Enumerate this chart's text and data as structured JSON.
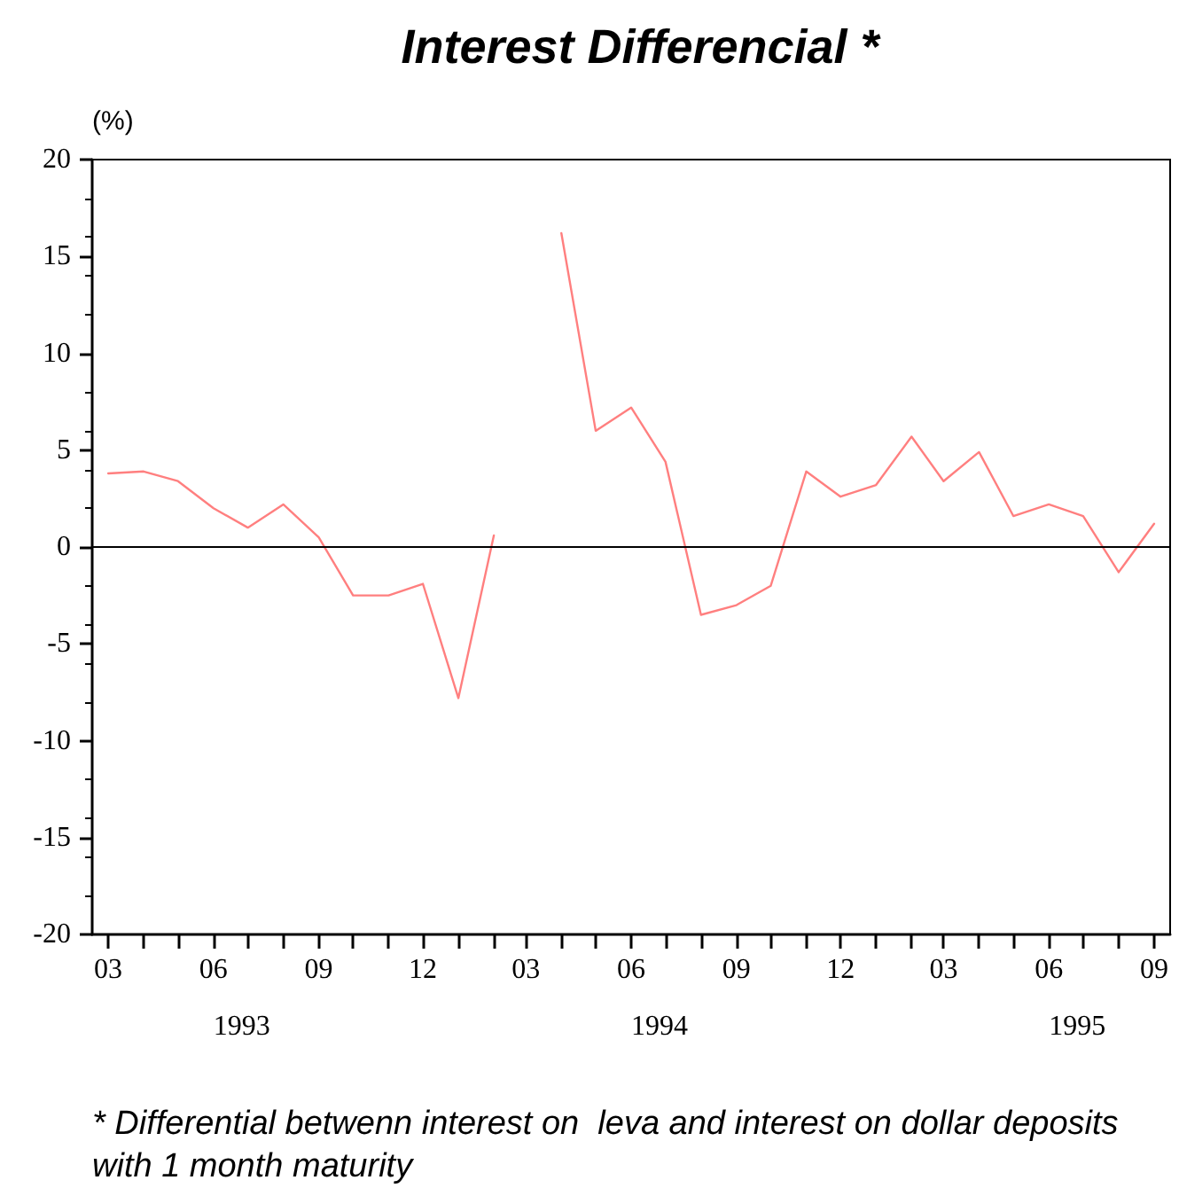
{
  "chart_data": {
    "type": "line",
    "title": "Interest Differencial *",
    "ylabel": "(%)",
    "x": [
      "1993-03",
      "1993-04",
      "1993-05",
      "1993-06",
      "1993-07",
      "1993-08",
      "1993-09",
      "1993-10",
      "1993-11",
      "1993-12",
      "1994-01",
      "1994-02",
      "1994-03",
      "1994-04",
      "1994-05",
      "1994-06",
      "1994-07",
      "1994-08",
      "1994-09",
      "1994-10",
      "1994-11",
      "1994-12",
      "1995-01",
      "1995-02",
      "1995-03",
      "1995-04",
      "1995-05",
      "1995-06",
      "1995-07",
      "1995-08",
      "1995-09"
    ],
    "series": [
      {
        "color": "#ff7f7f",
        "values": [
          3.8,
          3.9,
          3.4,
          2.0,
          1.0,
          2.2,
          0.5,
          -2.5,
          -2.5,
          -1.9,
          -7.8,
          0.6,
          null,
          16.2,
          6.0,
          7.2,
          4.4,
          -3.5,
          -3.0,
          -2.0,
          3.9,
          2.6,
          3.2,
          5.7,
          3.4,
          4.9,
          1.6,
          2.2,
          1.6,
          -1.3,
          1.2
        ]
      }
    ],
    "xlim": [
      "1993-02-15",
      "1995-09-15"
    ],
    "xticks": [
      {
        "value": "1993-03",
        "label": "03"
      },
      {
        "value": "1993-04",
        "label": null
      },
      {
        "value": "1993-05",
        "label": null
      },
      {
        "value": "1993-06",
        "label": "06"
      },
      {
        "value": "1993-07",
        "label": null
      },
      {
        "value": "1993-08",
        "label": null
      },
      {
        "value": "1993-09",
        "label": "09"
      },
      {
        "value": "1993-10",
        "label": null
      },
      {
        "value": "1993-11",
        "label": null
      },
      {
        "value": "1993-12",
        "label": "12"
      },
      {
        "value": "1994-01",
        "label": null
      },
      {
        "value": "1994-02",
        "label": null
      },
      {
        "value": "1994-03",
        "label": "03"
      },
      {
        "value": "1994-04",
        "label": null
      },
      {
        "value": "1994-05",
        "label": null
      },
      {
        "value": "1994-06",
        "label": "06"
      },
      {
        "value": "1994-07",
        "label": null
      },
      {
        "value": "1994-08",
        "label": null
      },
      {
        "value": "1994-09",
        "label": "09"
      },
      {
        "value": "1994-10",
        "label": null
      },
      {
        "value": "1994-11",
        "label": null
      },
      {
        "value": "1994-12",
        "label": "12"
      },
      {
        "value": "1995-01",
        "label": null
      },
      {
        "value": "1995-02",
        "label": null
      },
      {
        "value": "1995-03",
        "label": "03"
      },
      {
        "value": "1995-04",
        "label": null
      },
      {
        "value": "1995-05",
        "label": null
      },
      {
        "value": "1995-06",
        "label": "06"
      },
      {
        "value": "1995-07",
        "label": null
      },
      {
        "value": "1995-08",
        "label": null
      },
      {
        "value": "1995-09",
        "label": "09"
      }
    ],
    "ylim": [
      -20,
      20
    ],
    "yticks": [
      -20,
      -15,
      -10,
      -5,
      0,
      5,
      10,
      15,
      20
    ],
    "ref_lines": [
      {
        "axis": "y",
        "value": 0,
        "color": "#000000"
      }
    ],
    "annotations": [
      "1993",
      "1994",
      "1995",
      "* Differential betwenn interest on  leva and interest on dollar deposits with 1 month maturity"
    ],
    "grid": false,
    "marker": "none",
    "line_style": "solid"
  }
}
